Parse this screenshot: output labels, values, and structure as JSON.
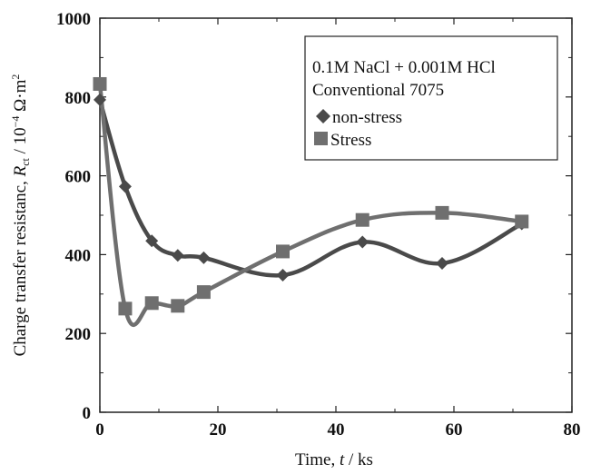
{
  "chart_data": {
    "type": "line",
    "xlabel": {
      "main": "Time,",
      "var": "t",
      "unit": "/ ks"
    },
    "ylabel": {
      "main": "Charge transfer resistanc,",
      "var": "R",
      "sub": "ct",
      "unit": " / 10",
      "exp": "−4",
      "unit2": " Ω·m",
      "exp2": "2"
    },
    "xlim": [
      0,
      80
    ],
    "ylim": [
      0,
      1000
    ],
    "xticks": [
      "0",
      "20",
      "40",
      "60",
      "80"
    ],
    "yticks": [
      "0",
      "200",
      "400",
      "600",
      "800",
      "1000"
    ],
    "grid": false,
    "legend_placement": "top-right",
    "legend_header": [
      "0.1M NaCl + 0.001M HCl",
      "Conventional 7075"
    ],
    "series": [
      {
        "name": "non-stress",
        "marker": "diamond",
        "color": "#4a4a4a",
        "x": [
          0,
          4.3,
          8.8,
          13.2,
          17.6,
          31,
          44.5,
          58,
          71.5
        ],
        "y": [
          793,
          573,
          435,
          398,
          392,
          348,
          432,
          378,
          478
        ]
      },
      {
        "name": "Stress",
        "marker": "square",
        "color": "#6f6f6f",
        "x": [
          0,
          4.3,
          8.8,
          13.2,
          17.6,
          31,
          44.5,
          58,
          71.5
        ],
        "y": [
          833,
          263,
          277,
          270,
          305,
          408,
          488,
          506,
          484
        ]
      }
    ]
  }
}
